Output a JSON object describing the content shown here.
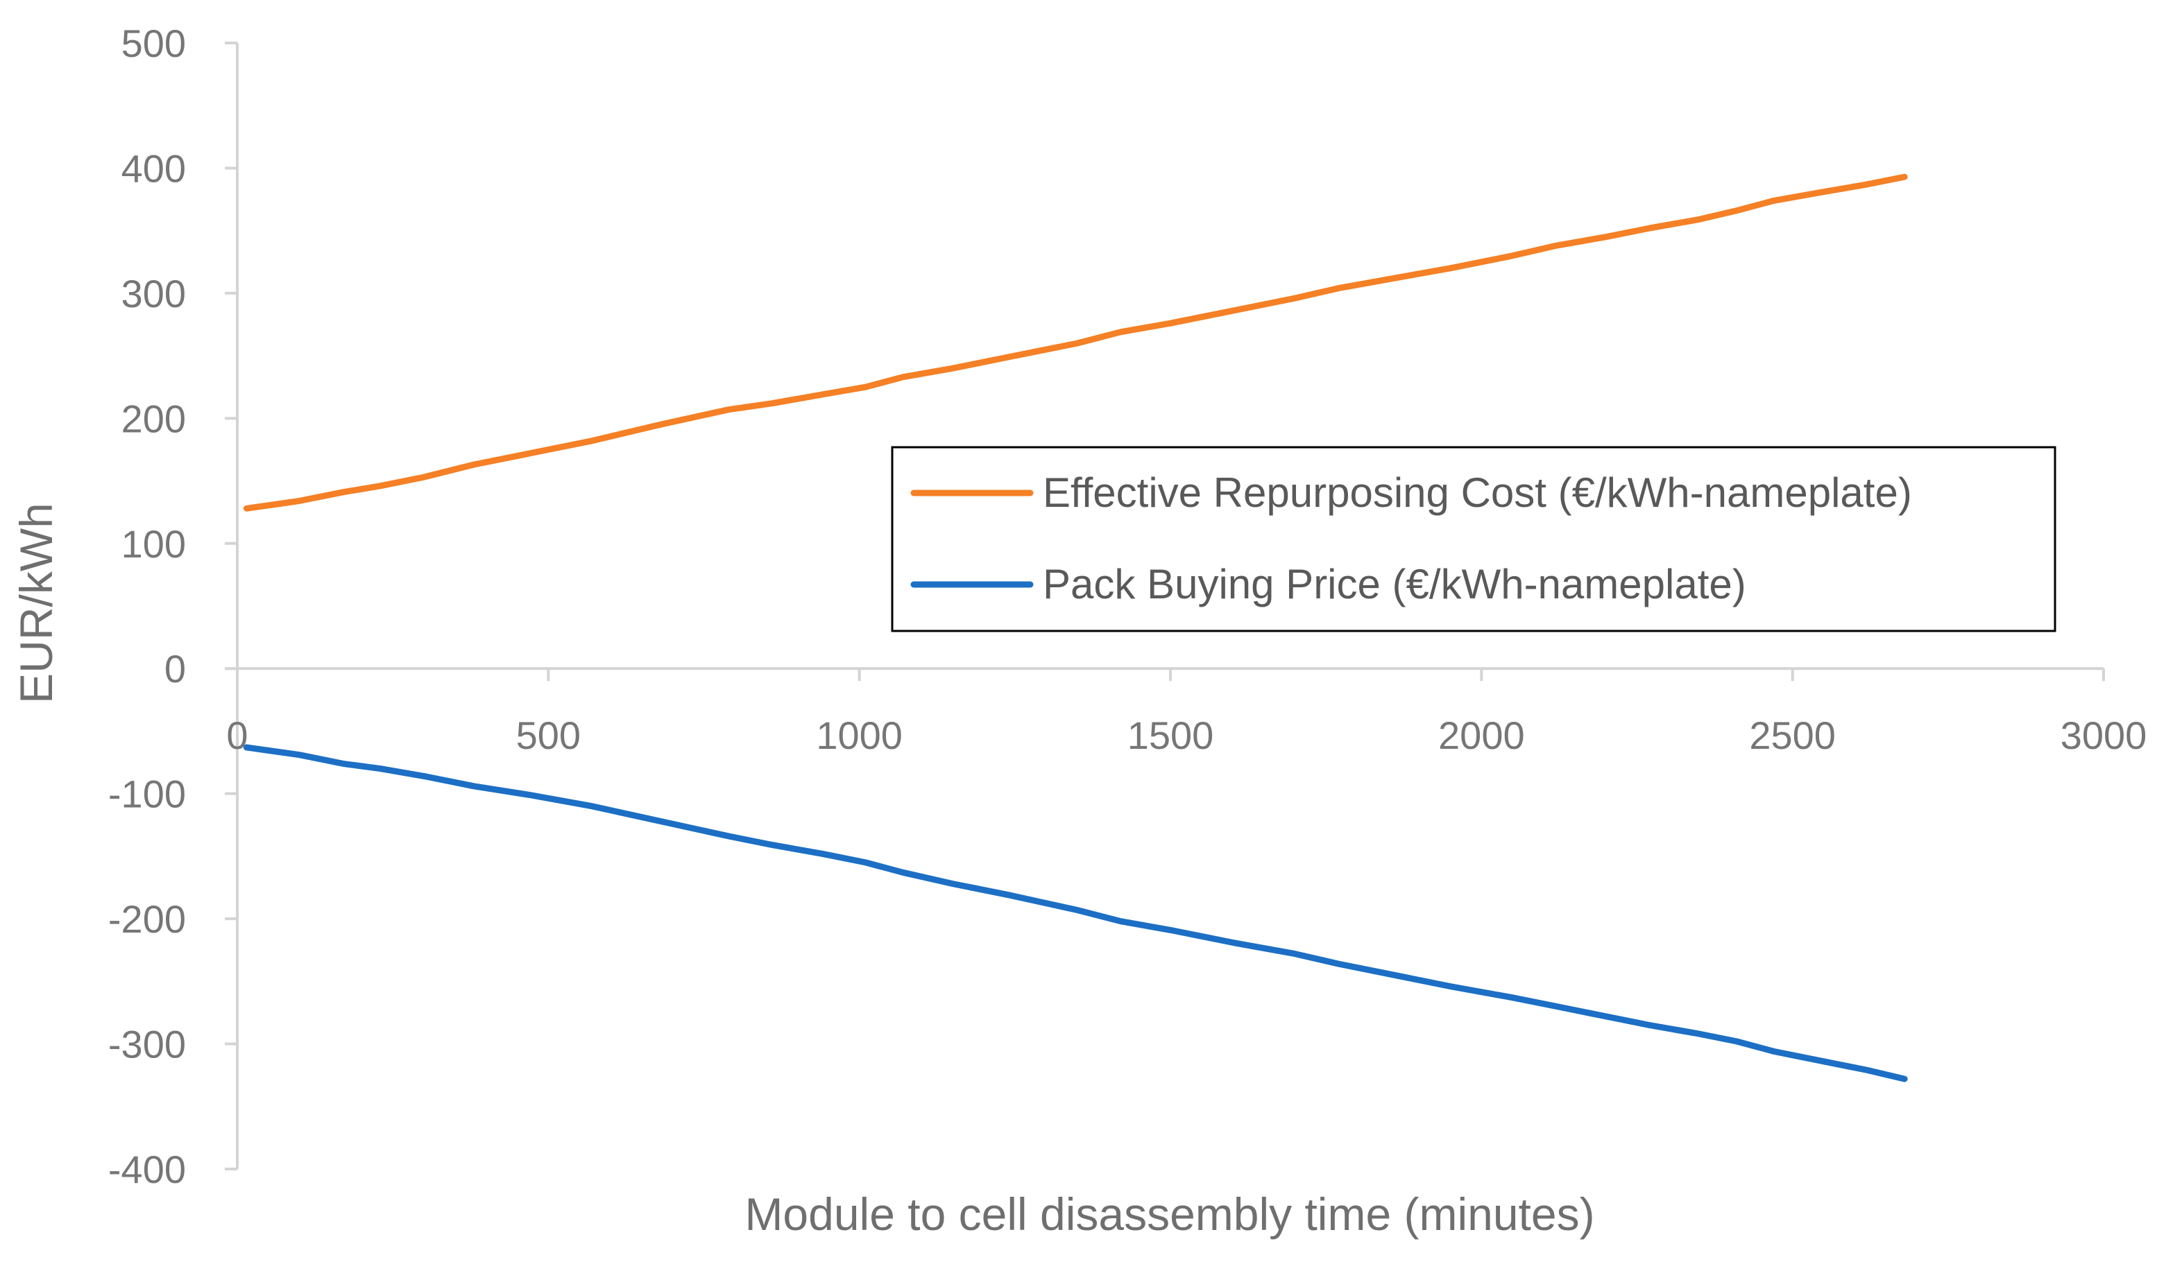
{
  "chart_data": {
    "type": "line",
    "title": "",
    "xlabel": "Module to cell disassembly time (minutes)",
    "ylabel": "EUR/kWh",
    "xlim": [
      0,
      3000
    ],
    "ylim": [
      -400,
      500
    ],
    "x_ticks": [
      0,
      500,
      1000,
      1500,
      2000,
      2500,
      3000
    ],
    "y_ticks": [
      500,
      400,
      300,
      200,
      100,
      0,
      -100,
      -200,
      -300,
      -400
    ],
    "x_tick_labels": [
      "0",
      "500",
      "1000",
      "1500",
      "2000",
      "2500",
      "3000"
    ],
    "y_tick_labels": [
      "500",
      "400",
      "300",
      "200",
      "100",
      "0",
      "-100",
      "-200",
      "-300",
      "-400"
    ],
    "grid": false,
    "legend_position": "center-right",
    "x": [
      15,
      100,
      170,
      230,
      300,
      380,
      470,
      570,
      680,
      790,
      860,
      940,
      1010,
      1070,
      1150,
      1240,
      1350,
      1420,
      1500,
      1600,
      1700,
      1770,
      1860,
      1950,
      2050,
      2120,
      2200,
      2270,
      2350,
      2410,
      2470,
      2550,
      2620,
      2680
    ],
    "series": [
      {
        "name": "Effective Repurposing Cost (€/kWh-nameplate)",
        "color": "#F58025",
        "values": [
          128,
          134,
          141,
          146,
          153,
          163,
          172,
          182,
          195,
          207,
          212,
          219,
          225,
          233,
          240,
          249,
          260,
          269,
          276,
          286,
          296,
          304,
          312,
          320,
          330,
          338,
          345,
          352,
          359,
          366,
          374,
          381,
          387,
          393
        ]
      },
      {
        "name": "Pack Buying Price (€/kWh-nameplate)",
        "color": "#1C6FC4",
        "values": [
          -63,
          -69,
          -76,
          -80,
          -86,
          -94,
          -101,
          -110,
          -122,
          -134,
          -141,
          -148,
          -155,
          -163,
          -172,
          -181,
          -193,
          -202,
          -209,
          -219,
          -228,
          -236,
          -245,
          -254,
          -263,
          -270,
          -278,
          -285,
          -292,
          -298,
          -306,
          -314,
          -321,
          -328
        ]
      }
    ]
  }
}
